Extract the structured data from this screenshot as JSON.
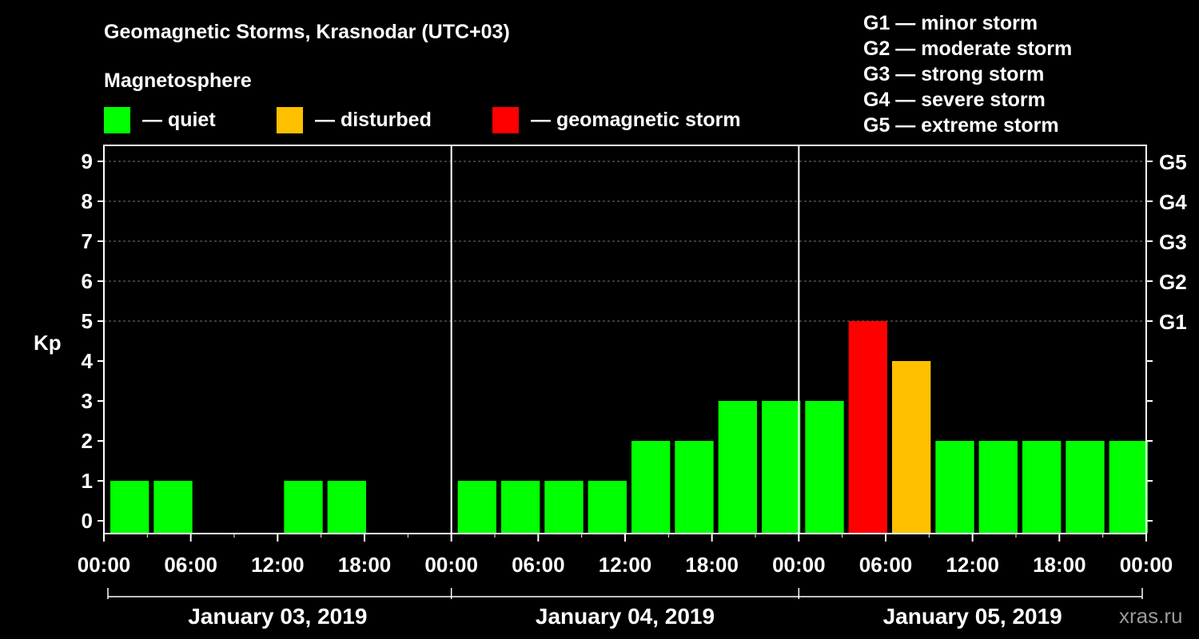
{
  "title": "Geomagnetic Storms, Krasnodar (UTC+03)",
  "subtitle": "Magnetosphere",
  "legend": [
    {
      "label": "— quiet",
      "color": "#00ff00"
    },
    {
      "label": "— disturbed",
      "color": "#ffc000"
    },
    {
      "label": "— geomagnetic storm",
      "color": "#ff0000"
    }
  ],
  "storm_scale": [
    "G1 — minor storm",
    "G2 — moderate storm",
    "G3 — strong storm",
    "G4 — severe storm",
    "G5 — extreme storm"
  ],
  "watermark": "xras.ru",
  "chart_data": {
    "type": "bar",
    "ylabel": "Kp",
    "ylim": [
      0,
      9
    ],
    "yticks": [
      "0",
      "1",
      "2",
      "3",
      "4",
      "5",
      "6",
      "7",
      "8",
      "9"
    ],
    "right_ticks": [
      {
        "kp": 5,
        "label": "G1"
      },
      {
        "kp": 6,
        "label": "G2"
      },
      {
        "kp": 7,
        "label": "G3"
      },
      {
        "kp": 8,
        "label": "G4"
      },
      {
        "kp": 9,
        "label": "G5"
      }
    ],
    "xticks": [
      "00:00",
      "06:00",
      "12:00",
      "18:00",
      "00:00",
      "06:00",
      "12:00",
      "18:00",
      "00:00",
      "06:00",
      "12:00",
      "18:00",
      "00:00"
    ],
    "days": [
      "January 03, 2019",
      "January 04, 2019",
      "January 05, 2019"
    ],
    "interval_hours": 3,
    "values": [
      1,
      1,
      0,
      0,
      1,
      1,
      0,
      0,
      1,
      1,
      1,
      1,
      2,
      2,
      3,
      3,
      3,
      5,
      4,
      2,
      2,
      2,
      2,
      2
    ],
    "colors": {
      "quiet": "#00ff00",
      "disturbed": "#ffc000",
      "storm": "#ff0000"
    },
    "grid": true
  }
}
